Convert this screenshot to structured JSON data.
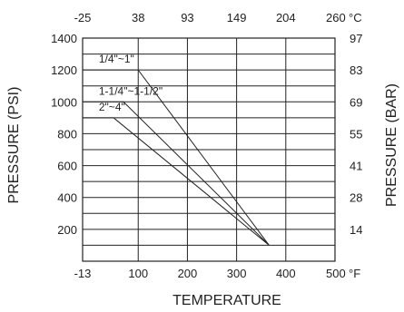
{
  "chart_data": {
    "type": "line",
    "x_bottom": {
      "title": "TEMPERATURE",
      "unit_label": "°F",
      "range": [
        -13,
        500
      ],
      "ticks": [
        {
          "value": -13,
          "label": "-13"
        },
        {
          "value": 100,
          "label": "100"
        },
        {
          "value": 200,
          "label": "200"
        },
        {
          "value": 300,
          "label": "300"
        },
        {
          "value": 400,
          "label": "400"
        },
        {
          "value": 500,
          "label": "500"
        }
      ]
    },
    "x_top": {
      "unit_label": "°C",
      "ticks": [
        {
          "value": -13,
          "label": "-25"
        },
        {
          "value": 100,
          "label": "38"
        },
        {
          "value": 200,
          "label": "93"
        },
        {
          "value": 300,
          "label": "149"
        },
        {
          "value": 400,
          "label": "204"
        },
        {
          "value": 500,
          "label": "260"
        }
      ]
    },
    "y_left": {
      "title": "PRESSURE (PSI)",
      "range": [
        0,
        1400
      ],
      "ticks": [
        {
          "value": 200,
          "label": "200"
        },
        {
          "value": 400,
          "label": "400"
        },
        {
          "value": 600,
          "label": "600"
        },
        {
          "value": 800,
          "label": "800"
        },
        {
          "value": 1000,
          "label": "1000"
        },
        {
          "value": 1200,
          "label": "1200"
        },
        {
          "value": 1400,
          "label": "1400"
        }
      ]
    },
    "y_right": {
      "title": "PRESSURE (BAR)",
      "ticks": [
        {
          "value": 200,
          "label": "14"
        },
        {
          "value": 400,
          "label": "28"
        },
        {
          "value": 600,
          "label": "41"
        },
        {
          "value": 800,
          "label": "55"
        },
        {
          "value": 1000,
          "label": "69"
        },
        {
          "value": 1200,
          "label": "83"
        },
        {
          "value": 1400,
          "label": "97"
        }
      ]
    },
    "grid": true,
    "series": [
      {
        "name": "1/4\"~1\"",
        "points": [
          [
            -13,
            1200
          ],
          [
            100,
            1200
          ],
          [
            366,
            100
          ]
        ],
        "label_at": [
          20,
          1245
        ]
      },
      {
        "name": "1-1/4\"~1-1/2\"",
        "points": [
          [
            -13,
            1000
          ],
          [
            70,
            1000
          ],
          [
            366,
            100
          ]
        ],
        "label_at": [
          20,
          1045
        ]
      },
      {
        "name": "2\"~4\"",
        "points": [
          [
            -13,
            900
          ],
          [
            50,
            900
          ],
          [
            366,
            100
          ]
        ],
        "label_at": [
          20,
          945
        ]
      }
    ]
  }
}
